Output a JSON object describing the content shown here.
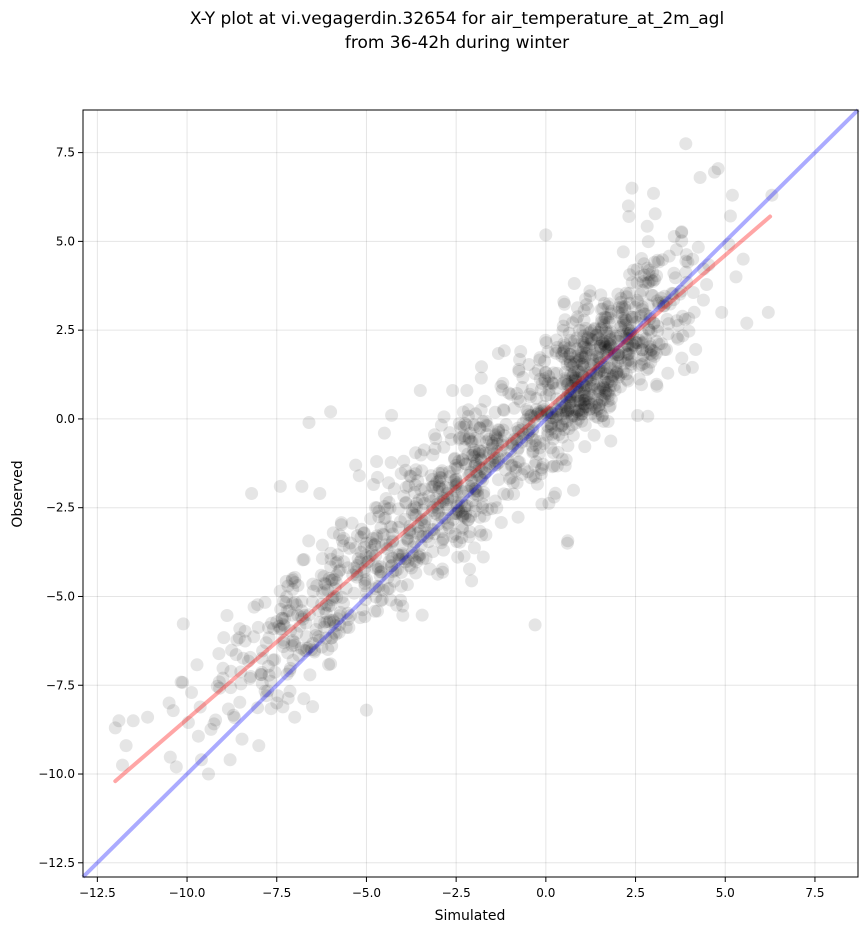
{
  "chart_data": {
    "type": "scatter",
    "title_lines": [
      "X-Y plot at vi.vegagerdin.32654 for air_temperature_at_2m_agl",
      "from 36-42h during winter"
    ],
    "xlabel": "Simulated",
    "ylabel": "Observed",
    "xlim": [
      -12.9,
      8.7
    ],
    "ylim": [
      -12.9,
      8.7
    ],
    "xticks": [
      -12.5,
      -10.0,
      -7.5,
      -5.0,
      -2.5,
      0.0,
      2.5,
      5.0,
      7.5
    ],
    "yticks": [
      -12.5,
      -10.0,
      -7.5,
      -5.0,
      -2.5,
      0.0,
      2.5,
      5.0,
      7.5
    ],
    "xtick_labels": [
      "−12.5",
      "−10.0",
      "−7.5",
      "−5.0",
      "−2.5",
      "0.0",
      "2.5",
      "5.0",
      "7.5"
    ],
    "ytick_labels": [
      "−12.5",
      "−10.0",
      "−7.5",
      "−5.0",
      "−2.5",
      "0.0",
      "2.5",
      "5.0",
      "7.5"
    ],
    "grid": true,
    "point_color": "#000000",
    "point_opacity": 0.1,
    "point_count": 1400,
    "regression_line": {
      "color": "#ff0000",
      "opacity": 0.35,
      "x": [
        -12.0,
        6.25
      ],
      "y": [
        -10.2,
        5.7
      ]
    },
    "identity_line": {
      "color": "#0000ff",
      "opacity": 0.33,
      "x": [
        -12.9,
        8.7
      ],
      "y": [
        -12.9,
        8.7
      ]
    },
    "outlier_points": [
      [
        3.9,
        7.75
      ],
      [
        4.8,
        7.05
      ],
      [
        4.7,
        6.95
      ],
      [
        4.3,
        6.8
      ],
      [
        5.2,
        6.3
      ],
      [
        2.4,
        6.5
      ],
      [
        3.0,
        6.35
      ],
      [
        2.3,
        6.0
      ],
      [
        6.3,
        6.3
      ],
      [
        6.2,
        3.0
      ],
      [
        5.5,
        4.5
      ],
      [
        5.6,
        2.7
      ],
      [
        5.3,
        4.0
      ],
      [
        4.9,
        3.0
      ],
      [
        0.5,
        3.3
      ],
      [
        -0.7,
        1.9
      ],
      [
        -2.6,
        0.8
      ],
      [
        -2.2,
        0.8
      ],
      [
        -1.2,
        1.0
      ],
      [
        -1.7,
        0.5
      ],
      [
        -3.5,
        0.8
      ],
      [
        -4.3,
        0.1
      ],
      [
        -4.5,
        -0.4
      ],
      [
        -5.3,
        -1.3
      ],
      [
        -5.2,
        -1.6
      ],
      [
        -0.3,
        -5.8
      ],
      [
        0.6,
        -3.5
      ],
      [
        -6.6,
        -0.1
      ],
      [
        -6.0,
        0.2
      ],
      [
        -6.3,
        -2.1
      ],
      [
        -8.2,
        -2.1
      ],
      [
        -7.4,
        -1.9
      ],
      [
        -6.8,
        -1.9
      ],
      [
        -5.0,
        -8.2
      ],
      [
        -6.0,
        -6.9
      ],
      [
        -8.0,
        -9.2
      ],
      [
        -8.8,
        -9.6
      ],
      [
        -9.6,
        -9.6
      ],
      [
        -10.3,
        -9.8
      ],
      [
        -12.0,
        -8.7
      ],
      [
        -11.9,
        -8.5
      ],
      [
        -11.5,
        -8.5
      ],
      [
        -11.1,
        -8.4
      ],
      [
        -11.7,
        -9.2
      ],
      [
        -11.8,
        -9.75
      ],
      [
        -10.5,
        -8.0
      ],
      [
        -9.0,
        -7.3
      ],
      [
        -7.5,
        -8.0
      ],
      [
        -7.0,
        -8.4
      ],
      [
        -6.5,
        -8.1
      ]
    ]
  }
}
